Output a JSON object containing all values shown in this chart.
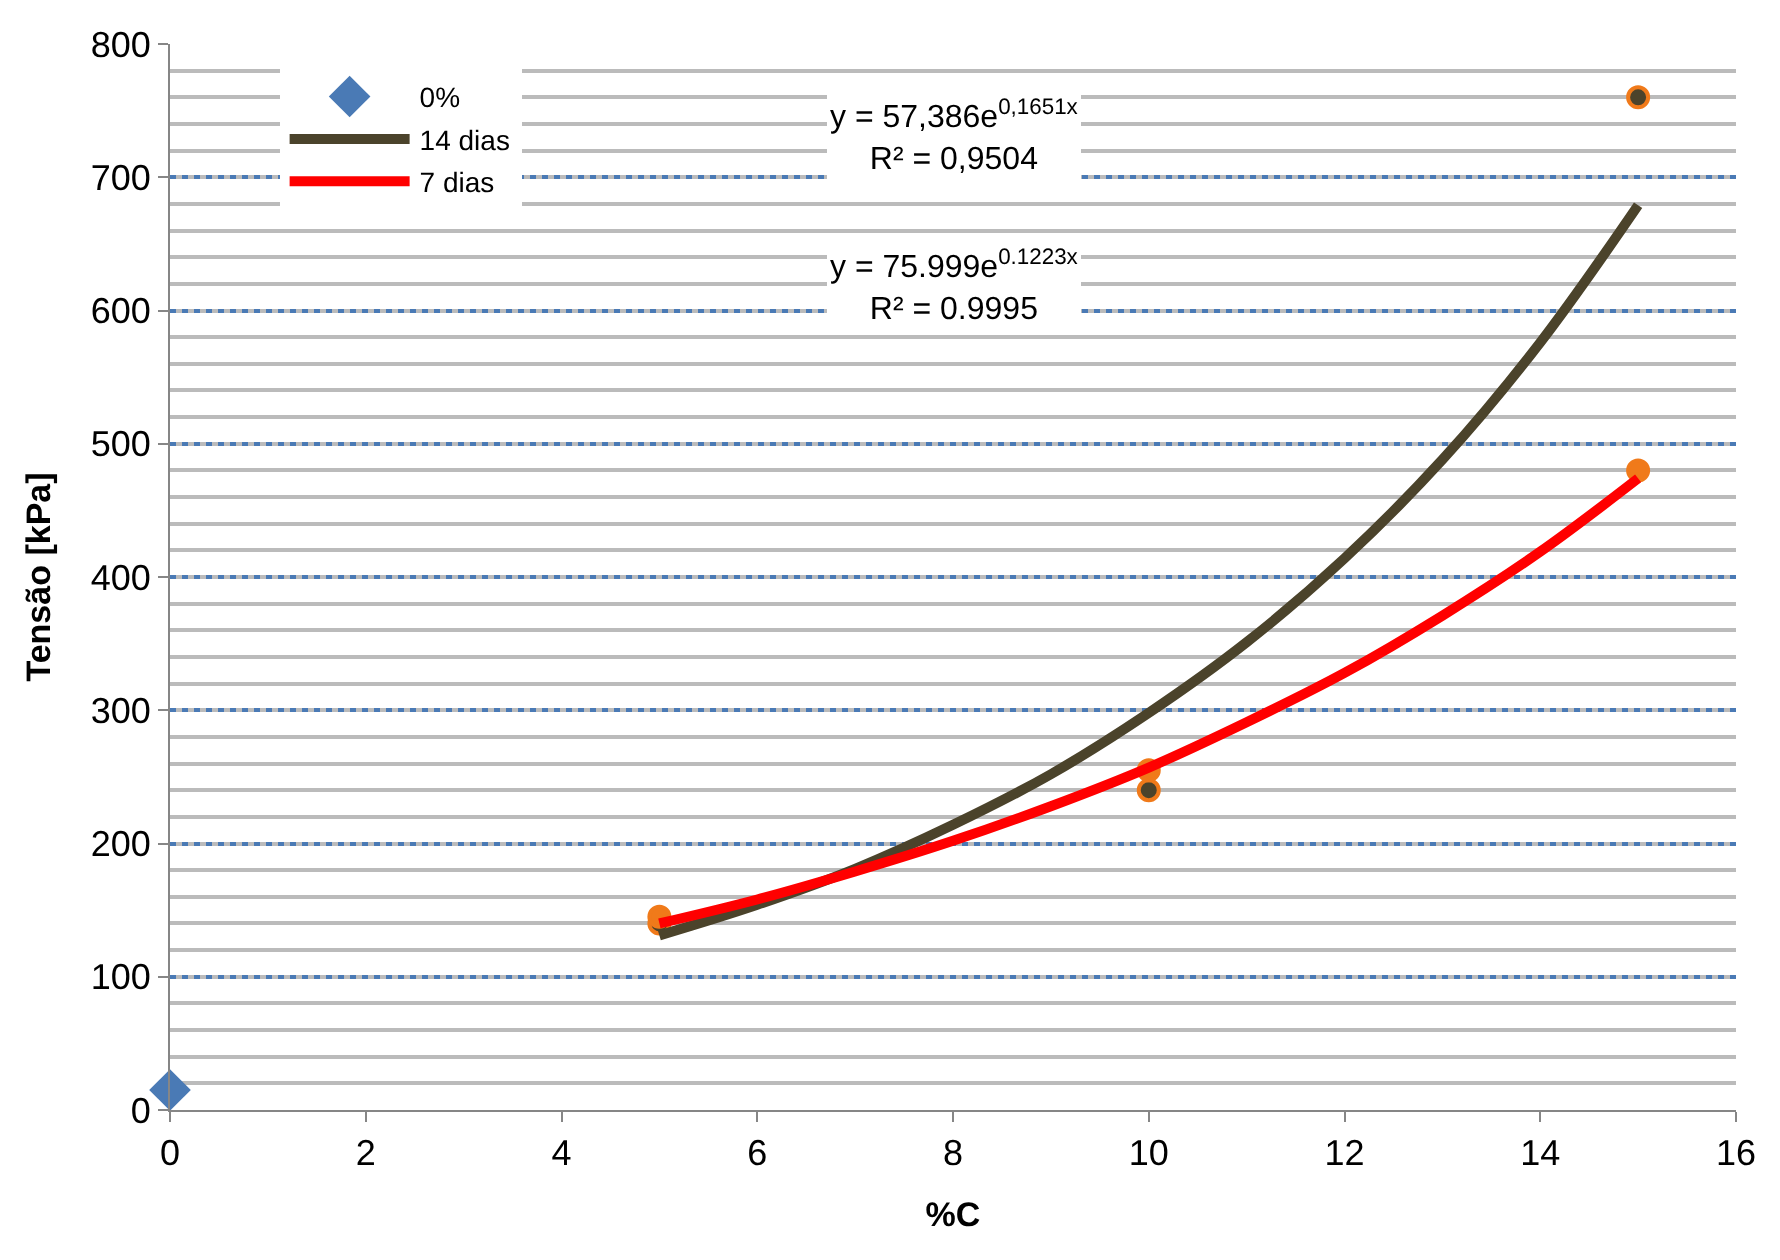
{
  "chart_data": {
    "type": "scatter",
    "xlabel": "%C",
    "ylabel": "Tensão [kPa]",
    "xlim": [
      0,
      16
    ],
    "xticks": [
      0,
      2,
      4,
      6,
      8,
      10,
      12,
      14,
      16
    ],
    "ylim": [
      0,
      800
    ],
    "yticks": [
      0,
      100,
      200,
      300,
      400,
      500,
      600,
      700,
      800
    ],
    "grid": "y",
    "legend": "top left",
    "annotations": [
      "y = 57,386e$^{0,1651x}$\nR² = 0,9504",
      "y = 75.999e$^{0.1223x}$\nR² = 0.9995"
    ],
    "series": [
      {
        "name": "0%",
        "marker": "diamond",
        "color": "#4a7ab5",
        "x": [
          0
        ],
        "values": [
          15
        ]
      },
      {
        "marker": "circle",
        "color": "#4b432b",
        "x": [
          5,
          10,
          15
        ],
        "values": [
          140,
          240,
          760
        ]
      },
      {
        "marker": "circle",
        "color": "#f07a1a",
        "x": [
          5,
          10,
          15
        ],
        "values": [
          145,
          255,
          480
        ]
      },
      {
        "name": "14 dias",
        "type": "line",
        "marker": "none",
        "color": "#4b432b",
        "x": [
          5,
          6,
          7,
          8,
          9,
          10,
          11,
          12,
          13,
          14,
          15
        ],
        "values": [
          131,
          154,
          181,
          214,
          252,
          298,
          351,
          414,
          488,
          576,
          679
        ]
      },
      {
        "name": "7 dias",
        "type": "line",
        "marker": "none",
        "color": "#ff0000",
        "x": [
          5,
          6,
          7,
          8,
          9,
          10,
          11,
          12,
          13,
          14,
          15
        ],
        "values": [
          140,
          158,
          179,
          202,
          228,
          257,
          291,
          328,
          371,
          419,
          474
        ]
      }
    ]
  }
}
